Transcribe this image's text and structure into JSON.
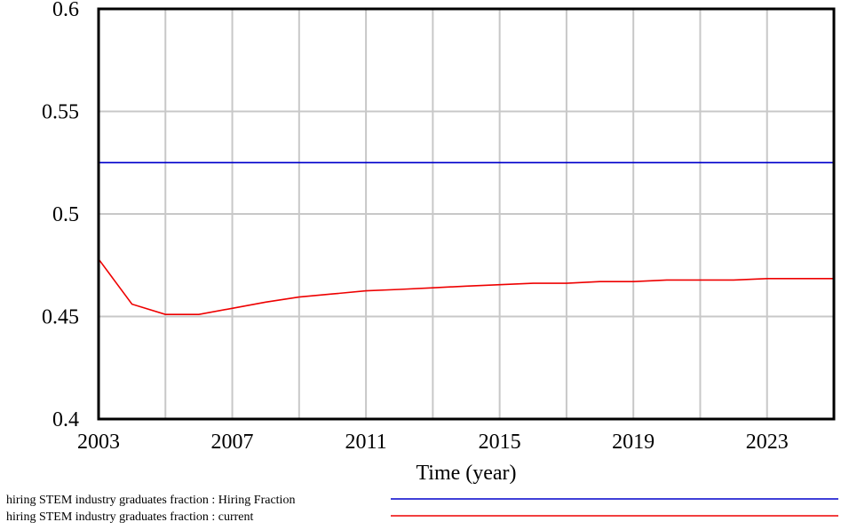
{
  "chart_data": {
    "type": "line",
    "title": "",
    "xlabel": "Time (year)",
    "ylabel": "",
    "xlim": [
      2003,
      2025
    ],
    "ylim": [
      0.4,
      0.6
    ],
    "grid": true,
    "legend_position": "bottom",
    "x_ticks": [
      "2003",
      "2007",
      "2011",
      "2015",
      "2019",
      "2023"
    ],
    "y_ticks": [
      "0.4",
      "0.45",
      "0.5",
      "0.55",
      "0.6"
    ],
    "series": [
      {
        "name": "hiring STEM industry graduates fraction : Hiring Fraction",
        "color": "#0000cc",
        "x": [
          2003,
          2025
        ],
        "values": [
          0.525,
          0.525
        ]
      },
      {
        "name": "hiring STEM industry graduates fraction : current",
        "color": "#ee0000",
        "x": [
          2003,
          2004,
          2005,
          2006,
          2007,
          2008,
          2009,
          2010,
          2011,
          2012,
          2013,
          2014,
          2015,
          2016,
          2017,
          2018,
          2019,
          2020,
          2021,
          2022,
          2023,
          2024,
          2025
        ],
        "values": [
          0.478,
          0.456,
          0.451,
          0.451,
          0.454,
          0.457,
          0.4595,
          0.461,
          0.4625,
          0.4632,
          0.464,
          0.4648,
          0.4655,
          0.4662,
          0.4662,
          0.467,
          0.467,
          0.4678,
          0.4678,
          0.4678,
          0.4685,
          0.4685,
          0.4685
        ]
      }
    ]
  }
}
